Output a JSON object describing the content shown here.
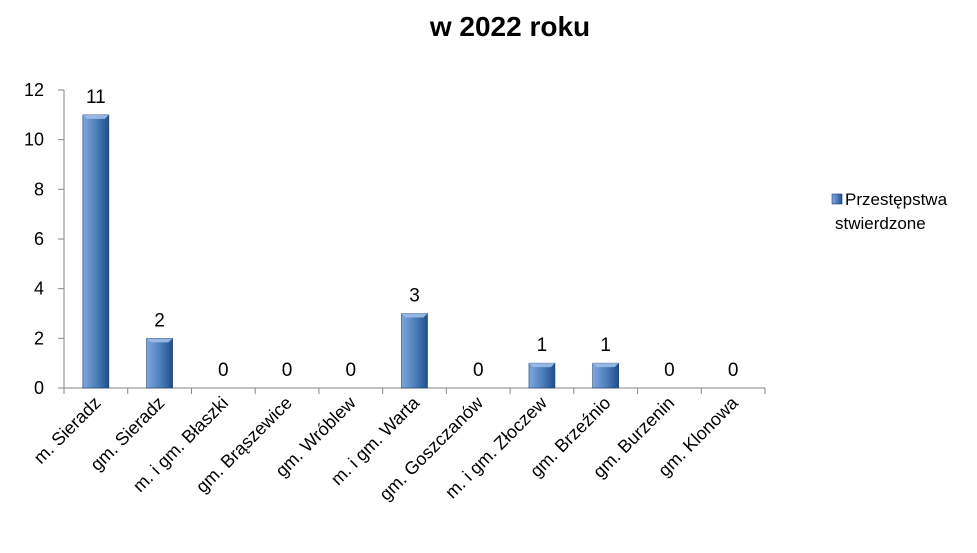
{
  "chart_data": {
    "type": "bar",
    "title": "w 2022 roku",
    "categories": [
      "m. Sieradz",
      "gm. Sieradz",
      "m. i gm. Błaszki",
      "gm. Brąszewice",
      "gm. Wróblew",
      "m. i gm. Warta",
      "gm. Goszczanów",
      "m. i gm. Złoczew",
      "gm. Brzeźnio",
      "gm. Burzenin",
      "gm. Klonowa"
    ],
    "series": [
      {
        "name": "Przestępstwa stwierdzone",
        "name_lines": [
          "Przestępstwa",
          "stwierdzone"
        ],
        "values": [
          11,
          2,
          0,
          0,
          0,
          3,
          0,
          1,
          1,
          0,
          0
        ]
      }
    ],
    "ylim": [
      0,
      12
    ],
    "yticks": [
      "0",
      "2",
      "4",
      "6",
      "8",
      "10",
      "12"
    ],
    "grid": false,
    "legend": "right",
    "colors": {
      "bar_top": "#7ea6de",
      "bar_mid": "#4f81bd",
      "bar_bottom": "#1f4f8c",
      "bar_edge": "#1c3f6e",
      "axis": "#868686"
    }
  }
}
